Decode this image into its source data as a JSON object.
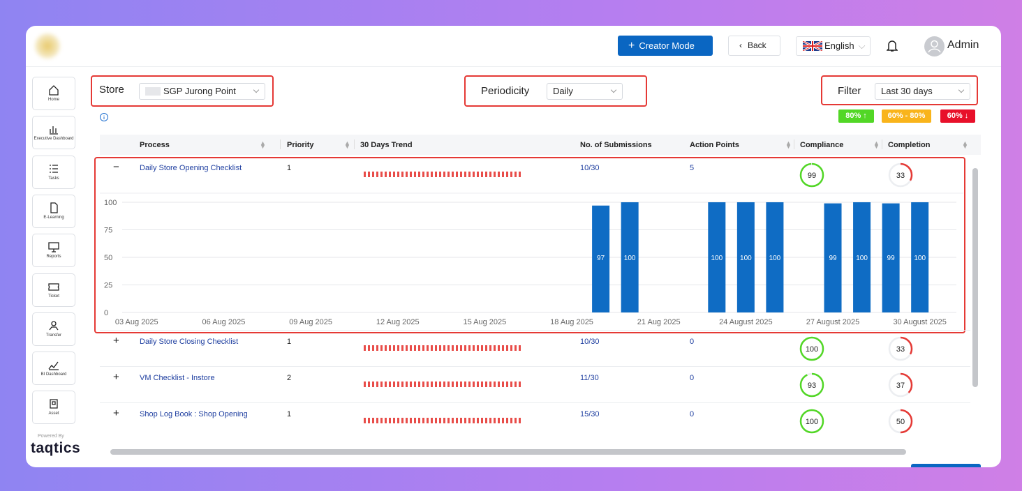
{
  "header": {
    "creator_mode": "Creator Mode",
    "back": "Back",
    "language": "English",
    "user": "Admin"
  },
  "sidebar": {
    "items": [
      "Home",
      "Executive Dashboard",
      "Tasks",
      "E-Learning",
      "Reports",
      "Ticket",
      "Transfer",
      "BI Dashboard",
      "Asset"
    ],
    "powered_by": "Powered By",
    "brand": "taqtics"
  },
  "filters": {
    "store_label": "Store",
    "store": "SGP Jurong Point",
    "periodicity_label": "Periodicity",
    "periodicity": "Daily",
    "filter_label": "Filter",
    "filter": "Last 30 days"
  },
  "legend": [
    "80% ↑",
    "60% - 80%",
    "60% ↓"
  ],
  "table": {
    "columns": [
      "Process",
      "Priority",
      "30 Days Trend",
      "No. of Submissions",
      "Action Points",
      "Compliance",
      "Completion"
    ],
    "rows": [
      {
        "toggle": "−",
        "process": "Daily Store Opening Checklist",
        "priority": 1,
        "submissions": "10/30",
        "action_points": 5,
        "compliance": 99,
        "completion": 33
      },
      {
        "toggle": "+",
        "process": "Daily Store Closing Checklist",
        "priority": 1,
        "submissions": "10/30",
        "action_points": 0,
        "compliance": 100,
        "completion": 33
      },
      {
        "toggle": "+",
        "process": "VM Checklist - Instore",
        "priority": 2,
        "submissions": "11/30",
        "action_points": 0,
        "compliance": 93,
        "completion": 37
      },
      {
        "toggle": "+",
        "process": "Shop Log Book : Shop Opening",
        "priority": 1,
        "submissions": "15/30",
        "action_points": 0,
        "compliance": 100,
        "completion": 50
      }
    ]
  },
  "chart_data": {
    "type": "bar",
    "color": "#0f6cc4",
    "categories": [
      "03 Aug 2025",
      null,
      null,
      "06 Aug 2025",
      null,
      null,
      "09 Aug 2025",
      null,
      null,
      "12 Aug 2025",
      null,
      null,
      "15 Aug 2025",
      null,
      null,
      "18 Aug 2025",
      null,
      null,
      "21 Aug 2025",
      null,
      null,
      "24 August 2025",
      null,
      null,
      "27 August 2025",
      null,
      null,
      "30 August 2025",
      null
    ],
    "values": [
      null,
      null,
      null,
      null,
      null,
      null,
      null,
      null,
      null,
      null,
      null,
      null,
      null,
      null,
      null,
      null,
      97,
      100,
      null,
      null,
      100,
      100,
      100,
      null,
      99,
      100,
      99,
      100,
      null
    ],
    "ylim": [
      0,
      100
    ],
    "yticks": [
      0,
      25,
      50,
      75,
      100
    ],
    "grid": true
  }
}
